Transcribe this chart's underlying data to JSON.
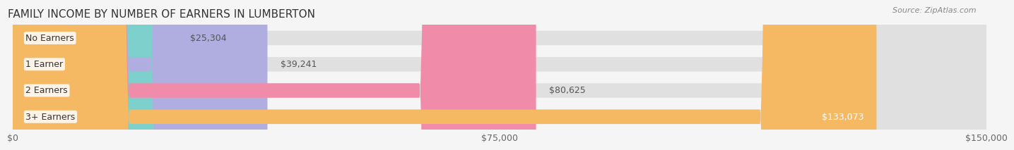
{
  "title": "FAMILY INCOME BY NUMBER OF EARNERS IN LUMBERTON",
  "source": "Source: ZipAtlas.com",
  "categories": [
    "No Earners",
    "1 Earner",
    "2 Earners",
    "3+ Earners"
  ],
  "values": [
    25304,
    39241,
    80625,
    133073
  ],
  "bar_colors": [
    "#7dd0cc",
    "#b0aee0",
    "#f08caa",
    "#f5b863"
  ],
  "bar_bg_color": "#eeeeee",
  "value_labels": [
    "$25,304",
    "$39,241",
    "$80,625",
    "$133,073"
  ],
  "xlim": [
    0,
    150000
  ],
  "xticks": [
    0,
    75000,
    150000
  ],
  "xtick_labels": [
    "$0",
    "$75,000",
    "$150,000"
  ],
  "title_fontsize": 11,
  "label_fontsize": 9,
  "source_fontsize": 8,
  "background_color": "#f5f5f5",
  "bar_bg_color2": "#e8e8e8"
}
